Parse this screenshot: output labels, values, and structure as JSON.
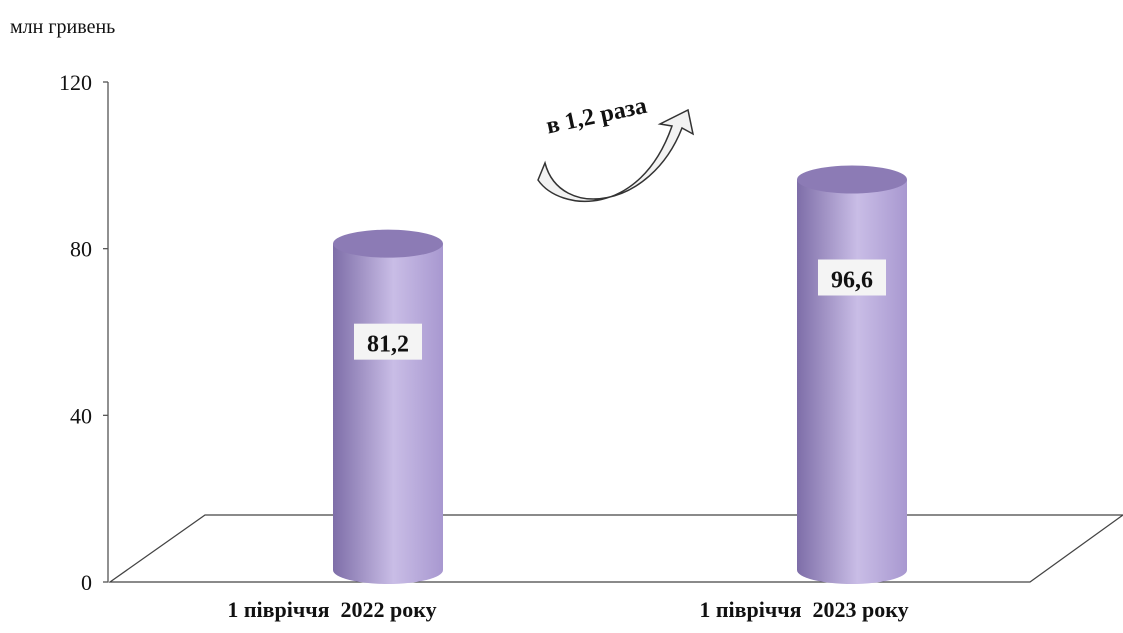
{
  "chart_data": {
    "type": "bar",
    "style": "3d-cylinder",
    "unit_label": "млн гривень",
    "categories": [
      "1 півріччя  2022 року",
      "1 півріччя  2023 року"
    ],
    "values": [
      81.2,
      96.6
    ],
    "data_labels": [
      "81,2",
      "96,6"
    ],
    "y_ticks": [
      "0",
      "40",
      "80",
      "120"
    ],
    "ylim": [
      0,
      120
    ],
    "annotation": "в 1,2 раза",
    "grid": false,
    "colors": {
      "bar_light": "#c9bde6",
      "bar_mid": "#a898d0",
      "bar_dark": "#7e6ea8",
      "bar_top": "#8c7bb5",
      "floor": "#444444"
    }
  }
}
